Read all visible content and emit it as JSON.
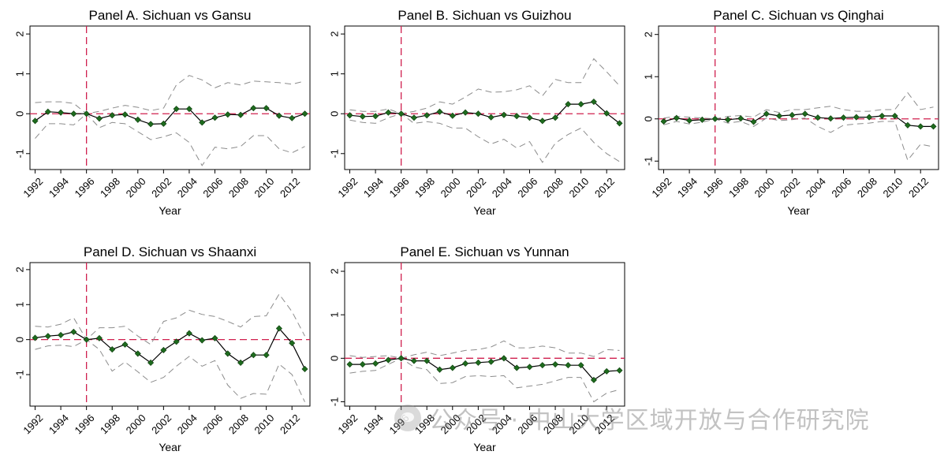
{
  "watermark_text": "公众号 · 中山大学区域开放与合作研究院",
  "chart_data": [
    {
      "type": "line",
      "title": "Panel A. Sichuan vs Gansu",
      "xlabel": "Year",
      "ylabel": "",
      "x": [
        1992,
        1993,
        1994,
        1995,
        1996,
        1997,
        1998,
        1999,
        2000,
        2001,
        2002,
        2003,
        2004,
        2005,
        2006,
        2007,
        2008,
        2009,
        2010,
        2011,
        2012,
        2013
      ],
      "xticks": [
        1992,
        1994,
        1996,
        1998,
        2000,
        2002,
        2004,
        2006,
        2008,
        2010,
        2012
      ],
      "yticks": [
        -1,
        0,
        1,
        2
      ],
      "ylim": [
        -1.4,
        2.2
      ],
      "xlim": [
        1991.6,
        2013.4
      ],
      "treatment_year": 1996,
      "series": [
        {
          "values": [
            -0.18,
            0.05,
            0.03,
            0.0,
            0.0,
            -0.12,
            -0.04,
            -0.02,
            -0.15,
            -0.26,
            -0.25,
            0.12,
            0.12,
            -0.22,
            -0.1,
            -0.02,
            -0.03,
            0.14,
            0.14,
            -0.05,
            -0.11,
            0.0
          ],
          "role": "estimate",
          "color": "#1e6b1e"
        },
        {
          "values": [
            0.28,
            0.3,
            0.3,
            0.26,
            0.0,
            0.06,
            0.14,
            0.21,
            0.16,
            0.08,
            0.14,
            0.72,
            0.96,
            0.85,
            0.65,
            0.78,
            0.72,
            0.82,
            0.8,
            0.78,
            0.74,
            0.82
          ],
          "role": "upper",
          "color": "#8c8c8c"
        },
        {
          "values": [
            -0.62,
            -0.25,
            -0.25,
            -0.28,
            0.0,
            -0.35,
            -0.22,
            -0.25,
            -0.45,
            -0.65,
            -0.58,
            -0.48,
            -0.72,
            -1.3,
            -0.84,
            -0.88,
            -0.82,
            -0.55,
            -0.55,
            -0.88,
            -0.98,
            -0.82
          ],
          "role": "lower",
          "color": "#8c8c8c"
        }
      ]
    },
    {
      "type": "line",
      "title": "Panel B. Sichuan vs Guizhou",
      "xlabel": "Year",
      "ylabel": "",
      "x": [
        1992,
        1993,
        1994,
        1995,
        1996,
        1997,
        1998,
        1999,
        2000,
        2001,
        2002,
        2003,
        2004,
        2005,
        2006,
        2007,
        2008,
        2009,
        2010,
        2011,
        2012,
        2013
      ],
      "xticks": [
        1992,
        1994,
        1996,
        1998,
        2000,
        2002,
        2004,
        2006,
        2008,
        2010,
        2012
      ],
      "yticks": [
        -1,
        0,
        1,
        2
      ],
      "ylim": [
        -1.4,
        2.2
      ],
      "xlim": [
        1991.6,
        2013.4
      ],
      "treatment_year": 1996,
      "series": [
        {
          "values": [
            -0.04,
            -0.07,
            -0.06,
            0.03,
            0.0,
            -0.1,
            -0.04,
            0.05,
            -0.05,
            0.03,
            0.0,
            -0.09,
            -0.03,
            -0.06,
            -0.1,
            -0.18,
            -0.1,
            0.24,
            0.24,
            0.3,
            0.01,
            -0.24
          ],
          "role": "estimate",
          "color": "#1e6b1e"
        },
        {
          "values": [
            0.1,
            0.06,
            0.06,
            0.12,
            0.0,
            0.06,
            0.14,
            0.3,
            0.24,
            0.42,
            0.62,
            0.54,
            0.55,
            0.6,
            0.7,
            0.45,
            0.86,
            0.78,
            0.78,
            1.38,
            1.05,
            0.7
          ],
          "role": "upper",
          "color": "#8c8c8c"
        },
        {
          "values": [
            -0.16,
            -0.22,
            -0.24,
            -0.1,
            0.0,
            -0.24,
            -0.2,
            -0.24,
            -0.36,
            -0.36,
            -0.58,
            -0.76,
            -0.64,
            -0.86,
            -0.7,
            -1.22,
            -0.74,
            -0.52,
            -0.36,
            -0.72,
            -1.0,
            -1.2
          ],
          "role": "lower",
          "color": "#8c8c8c"
        }
      ]
    },
    {
      "type": "line",
      "title": "Panel C. Sichuan vs Qinghai",
      "xlabel": "Year",
      "ylabel": "",
      "x": [
        1992,
        1993,
        1994,
        1995,
        1996,
        1997,
        1998,
        1999,
        2000,
        2001,
        2002,
        2003,
        2004,
        2005,
        2006,
        2007,
        2008,
        2009,
        2010,
        2011,
        2012,
        2013
      ],
      "xticks": [
        1992,
        1994,
        1996,
        1998,
        2000,
        2002,
        2004,
        2006,
        2008,
        2010,
        2012
      ],
      "yticks": [
        -1,
        0,
        1,
        2
      ],
      "ylim": [
        -1.2,
        2.2
      ],
      "xlim": [
        1991.6,
        2013.4
      ],
      "treatment_year": 1996,
      "series": [
        {
          "values": [
            -0.06,
            0.02,
            -0.04,
            -0.02,
            0.0,
            -0.02,
            0.01,
            -0.07,
            0.12,
            0.07,
            0.09,
            0.12,
            0.03,
            0.01,
            0.03,
            0.04,
            0.04,
            0.07,
            0.07,
            -0.15,
            -0.18,
            -0.18
          ],
          "role": "estimate",
          "color": "#1e6b1e"
        },
        {
          "values": [
            0.02,
            0.06,
            0.04,
            0.02,
            0.0,
            0.06,
            0.08,
            0.04,
            0.22,
            0.15,
            0.22,
            0.22,
            0.26,
            0.3,
            0.22,
            0.18,
            0.18,
            0.22,
            0.22,
            0.62,
            0.22,
            0.28
          ],
          "role": "upper",
          "color": "#8c8c8c"
        },
        {
          "values": [
            -0.14,
            -0.06,
            -0.12,
            -0.08,
            0.0,
            -0.1,
            -0.06,
            -0.18,
            0.02,
            -0.04,
            -0.02,
            0.02,
            -0.18,
            -0.32,
            -0.15,
            -0.12,
            -0.1,
            -0.06,
            -0.06,
            -0.98,
            -0.6,
            -0.66
          ],
          "role": "lower",
          "color": "#8c8c8c"
        }
      ]
    },
    {
      "type": "line",
      "title": "Panel D. Sichuan vs Shaanxi",
      "xlabel": "Year",
      "ylabel": "",
      "x": [
        1992,
        1993,
        1994,
        1995,
        1996,
        1997,
        1998,
        1999,
        2000,
        2001,
        2002,
        2003,
        2004,
        2005,
        2006,
        2007,
        2008,
        2009,
        2010,
        2011,
        2012,
        2013
      ],
      "xticks": [
        1992,
        1994,
        1996,
        1998,
        2000,
        2002,
        2004,
        2006,
        2008,
        2010,
        2012
      ],
      "yticks": [
        -1,
        0,
        1,
        2
      ],
      "ylim": [
        -1.9,
        2.2
      ],
      "xlim": [
        1991.6,
        2013.4
      ],
      "treatment_year": 1996,
      "series": [
        {
          "values": [
            0.05,
            0.1,
            0.13,
            0.22,
            0.0,
            0.04,
            -0.28,
            -0.14,
            -0.4,
            -0.66,
            -0.3,
            -0.06,
            0.18,
            -0.02,
            0.04,
            -0.4,
            -0.66,
            -0.44,
            -0.44,
            0.32,
            -0.1,
            -0.84
          ],
          "role": "estimate",
          "color": "#1e6b1e"
        },
        {
          "values": [
            0.38,
            0.36,
            0.44,
            0.62,
            0.0,
            0.34,
            0.34,
            0.38,
            0.1,
            -0.14,
            0.52,
            0.62,
            0.84,
            0.72,
            0.66,
            0.52,
            0.36,
            0.66,
            0.68,
            1.3,
            0.8,
            0.1
          ],
          "role": "upper",
          "color": "#8c8c8c"
        },
        {
          "values": [
            -0.28,
            -0.18,
            -0.16,
            -0.2,
            0.0,
            -0.28,
            -0.9,
            -0.64,
            -0.92,
            -1.22,
            -1.08,
            -0.76,
            -0.48,
            -0.76,
            -0.6,
            -1.3,
            -1.68,
            -1.54,
            -1.56,
            -0.7,
            -1.0,
            -1.78
          ],
          "role": "lower",
          "color": "#8c8c8c"
        }
      ]
    },
    {
      "type": "line",
      "title": "Panel E. Sichuan vs Yunnan",
      "xlabel": "Year",
      "ylabel": "",
      "x": [
        1992,
        1993,
        1994,
        1995,
        1996,
        1997,
        1998,
        1999,
        2000,
        2001,
        2002,
        2003,
        2004,
        2005,
        2006,
        2007,
        2008,
        2009,
        2010,
        2011,
        2012,
        2013
      ],
      "xticks": [
        1992,
        1994,
        1996,
        1998,
        2000,
        2002,
        2004,
        2006,
        2008,
        2010,
        2012
      ],
      "yticks": [
        -1,
        0,
        1,
        2
      ],
      "ylim": [
        -1.1,
        2.2
      ],
      "xlim": [
        1991.6,
        2013.4
      ],
      "treatment_year": 1996,
      "series": [
        {
          "values": [
            -0.14,
            -0.14,
            -0.12,
            -0.04,
            0.0,
            -0.06,
            -0.06,
            -0.26,
            -0.22,
            -0.12,
            -0.1,
            -0.08,
            0.0,
            -0.22,
            -0.2,
            -0.16,
            -0.14,
            -0.16,
            -0.16,
            -0.5,
            -0.3,
            -0.28
          ],
          "role": "estimate",
          "color": "#1e6b1e"
        },
        {
          "values": [
            0.06,
            0.02,
            0.04,
            0.06,
            0.0,
            0.08,
            0.14,
            0.06,
            0.12,
            0.18,
            0.2,
            0.26,
            0.4,
            0.24,
            0.24,
            0.28,
            0.24,
            0.12,
            0.12,
            0.04,
            0.2,
            0.18
          ],
          "role": "upper",
          "color": "#8c8c8c"
        },
        {
          "values": [
            -0.34,
            -0.3,
            -0.28,
            -0.14,
            0.0,
            -0.2,
            -0.26,
            -0.58,
            -0.56,
            -0.42,
            -0.4,
            -0.42,
            -0.4,
            -0.68,
            -0.64,
            -0.6,
            -0.52,
            -0.44,
            -0.44,
            -1.0,
            -0.8,
            -0.72
          ],
          "role": "lower",
          "color": "#8c8c8c"
        }
      ]
    }
  ]
}
